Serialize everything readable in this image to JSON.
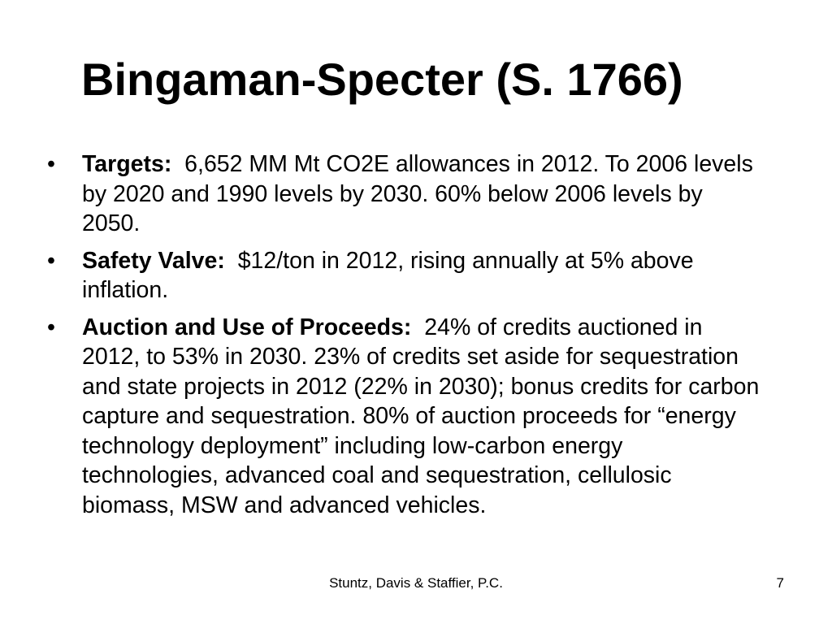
{
  "slide": {
    "title": "Bingaman-Specter (S. 1766)",
    "bullets": [
      {
        "marker": "•",
        "label": "Targets:",
        "text": "6,652 MM Mt CO2E allowances in 2012.  To 2006 levels by 2020 and 1990 levels by 2030.  60% below 2006 levels by 2050."
      },
      {
        "marker": "•",
        "label": "Safety Valve:",
        "text": "$12/ton in 2012, rising annually at 5% above inflation."
      },
      {
        "marker": "•",
        "label": "Auction and Use of Proceeds:",
        "text": "24% of credits auctioned in 2012, to 53% in 2030.  23% of credits set aside for sequestration and state projects in 2012 (22% in 2030); bonus credits for carbon capture and sequestration.  80% of auction proceeds for “energy technology deployment” including low-carbon energy technologies, advanced coal and sequestration, cellulosic biomass, MSW and advanced vehicles."
      }
    ],
    "footer": "Stuntz, Davis & Staffier, P.C.",
    "page_number": "7"
  }
}
